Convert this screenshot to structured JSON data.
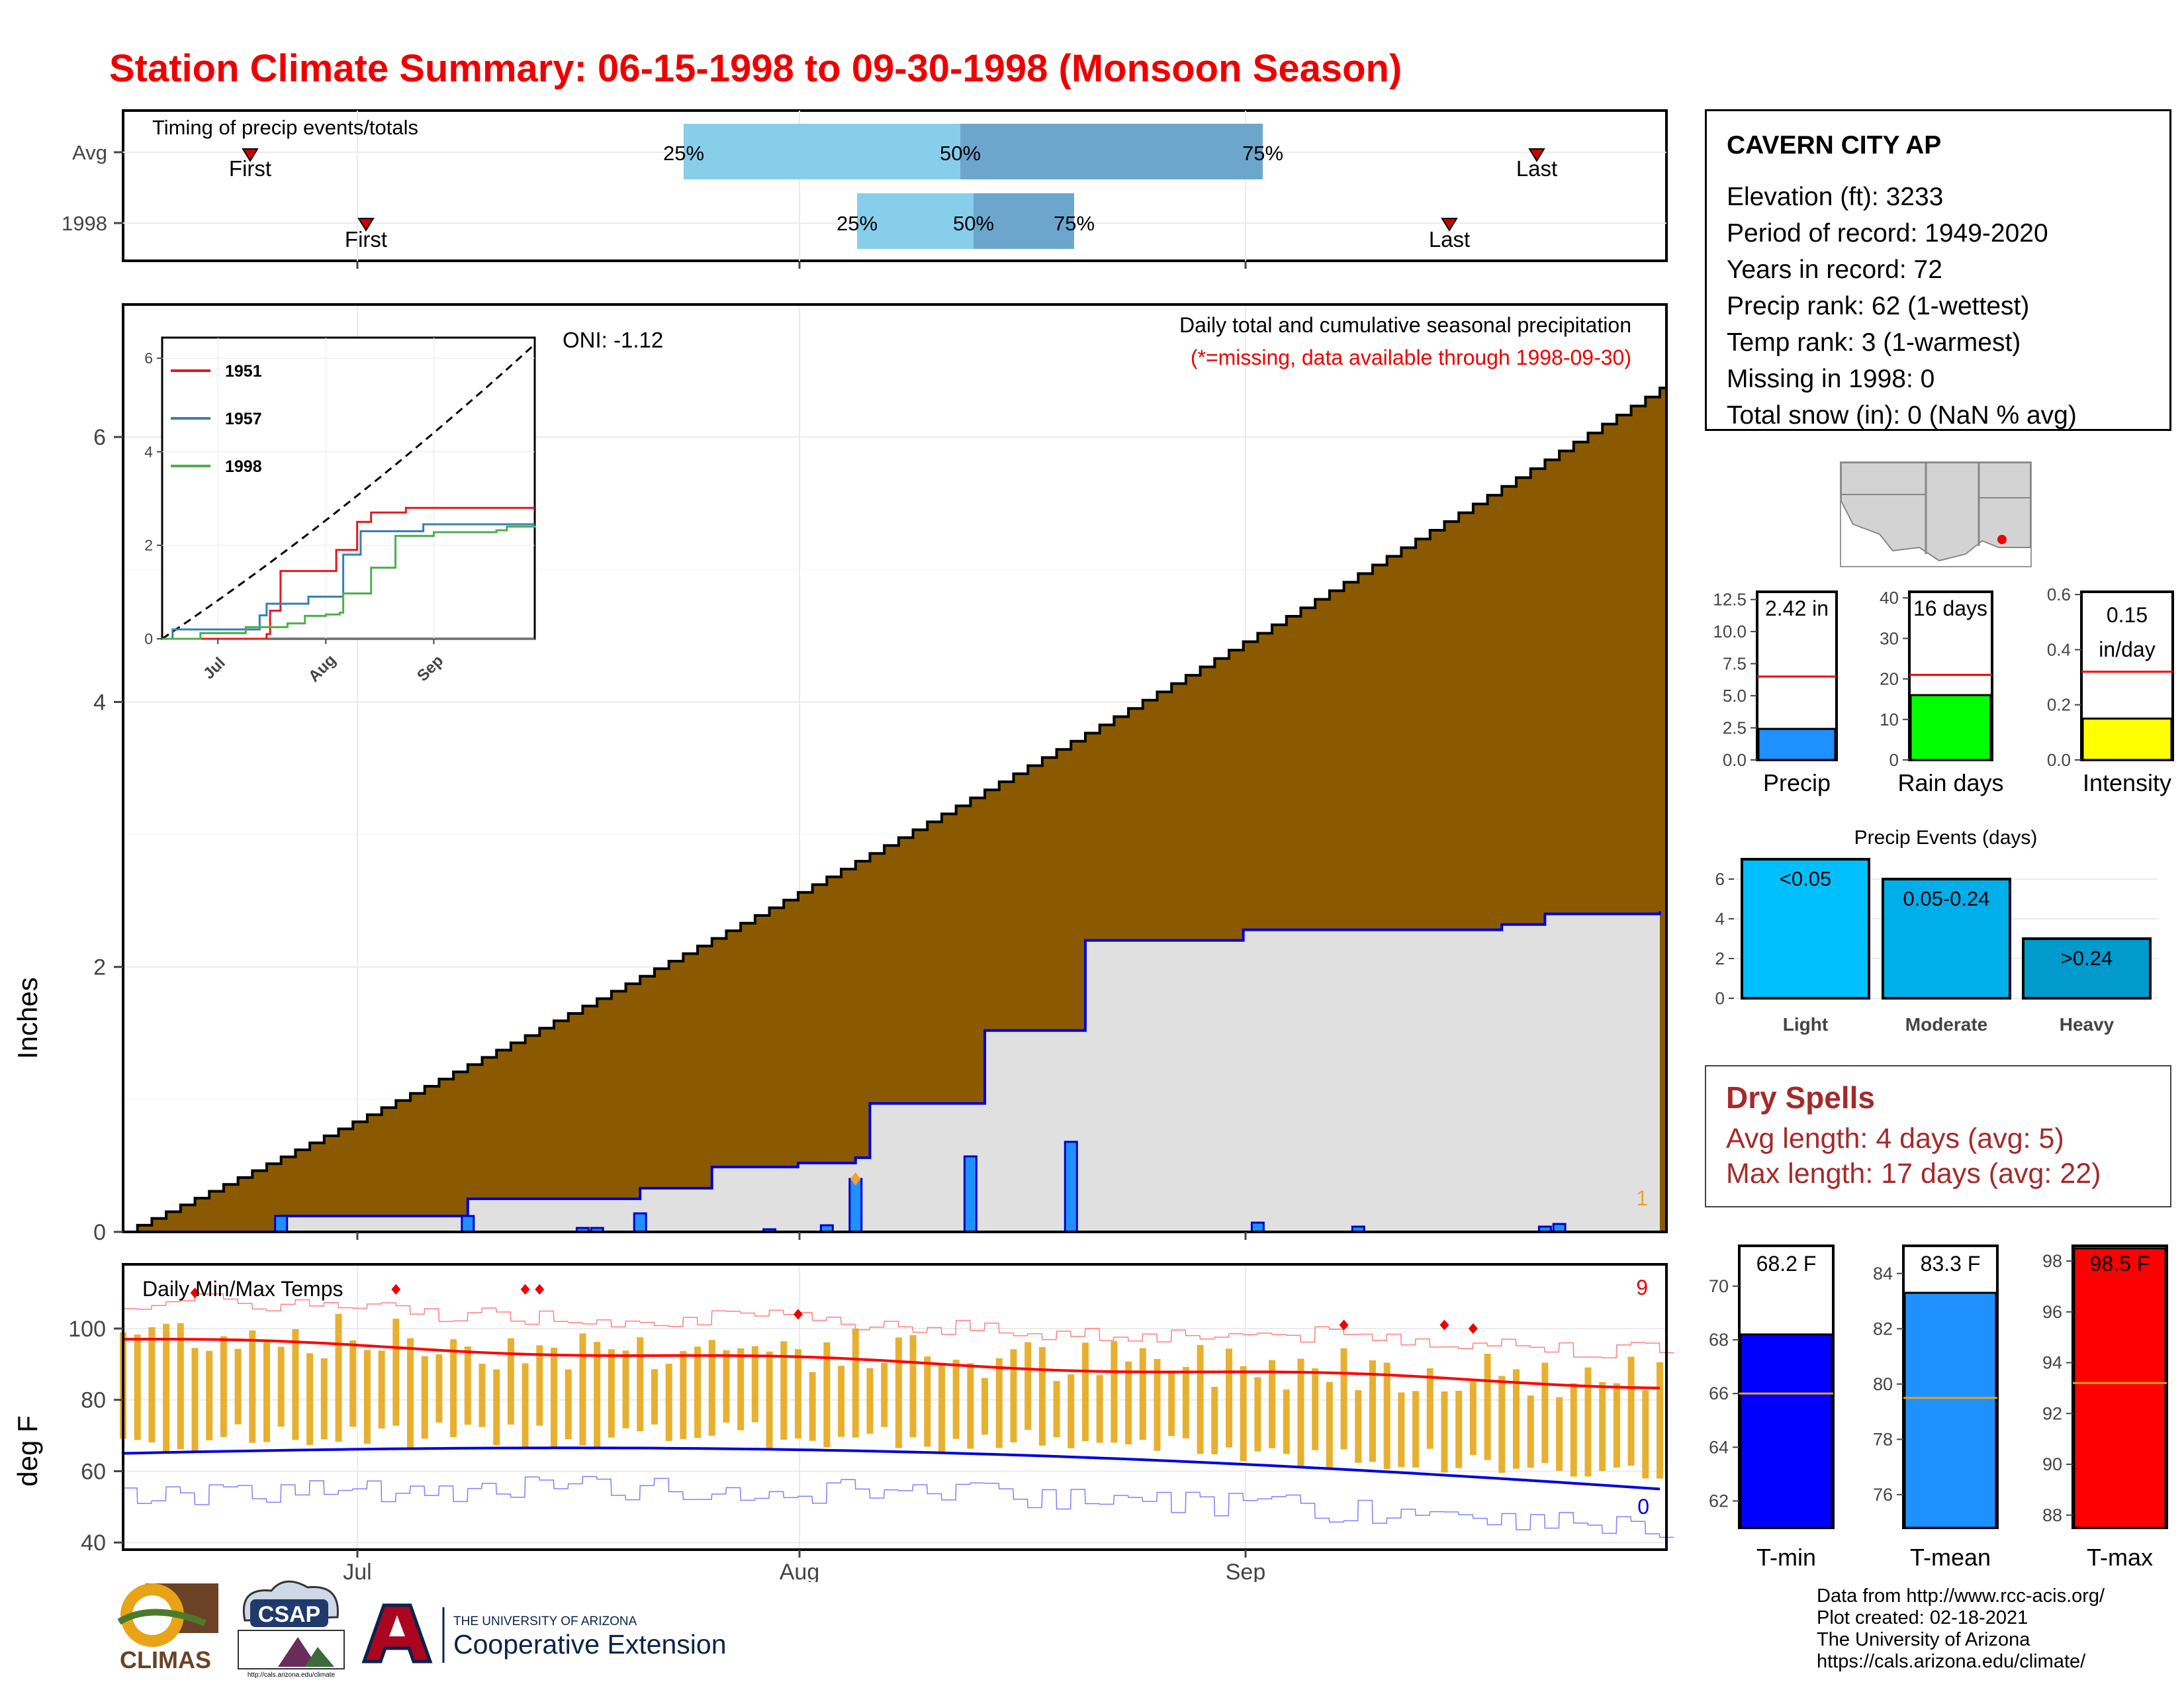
{
  "title": "Station Climate Summary: 06-15-1998 to 09-30-1998 (Monsoon Season)",
  "colors": {
    "title": "#ee0000",
    "cumulative_avg": "#8b5a00",
    "cumulative_year": "#e0e0e0",
    "year_line": "#0000dd",
    "daily_bar": "#1e90ff",
    "temp_bar": "#e8b030",
    "tmax_line": "#ff0000",
    "tmin_line": "#0000dd",
    "dry_spell_text": "#a52a2a"
  },
  "timing_panel": {
    "label": "Timing of precip events/totals",
    "rows": [
      {
        "name": "Avg",
        "first_label": "First",
        "last_label": "Last",
        "p25": "25%",
        "p50": "50%",
        "p75": "75%"
      },
      {
        "name": "1998",
        "first_label": "First",
        "last_label": "Last",
        "p25": "25%",
        "p50": "50%",
        "p75": "75%"
      }
    ]
  },
  "precip_panel": {
    "title": "Daily total and cumulative seasonal precipitation",
    "subtitle": "(*=missing, data available through 1998-09-30)",
    "oni_label": "ONI: -1.12",
    "ylabel": "Inches",
    "count_label": "1",
    "y_ticks": [
      "0",
      "2",
      "4",
      "6"
    ],
    "inset": {
      "legend": [
        "1951",
        "1957",
        "1998"
      ],
      "legend_colors": [
        "#e41a1c",
        "#377eb8",
        "#4daf4a"
      ],
      "y_ticks": [
        "0",
        "2",
        "4",
        "6"
      ],
      "x_ticks": [
        "Jul",
        "Aug",
        "Sep"
      ]
    }
  },
  "temp_panel": {
    "title": "Daily Min/Max Temps",
    "ylabel": "deg F",
    "max_count_label": "9",
    "min_count_label": "0",
    "y_ticks": [
      "40",
      "60",
      "80",
      "100"
    ],
    "x_ticks": [
      "Jul",
      "Aug",
      "Sep"
    ]
  },
  "station": {
    "name": "CAVERN CITY AP",
    "lines": [
      "Elevation (ft): 3233",
      "Period of record: 1949-2020",
      "Years in record: 72",
      "Precip rank: 62 (1-wettest)",
      "Temp rank: 3 (1-warmest)",
      "Missing in 1998: 0",
      "Total snow (in): 0 (NaN % avg)"
    ]
  },
  "gauges_top": [
    {
      "label": "Precip",
      "value_text": "2.42 in",
      "ticks": [
        "0.0",
        "2.5",
        "5.0",
        "7.5",
        "10.0",
        "12.5"
      ],
      "color": "#1e90ff"
    },
    {
      "label": "Rain days",
      "value_text": "16 days",
      "ticks": [
        "0",
        "10",
        "20",
        "30",
        "40"
      ],
      "color": "#00ff00"
    },
    {
      "label": "Intensity",
      "value_text_1": "0.15",
      "value_text_2": "in/day",
      "ticks": [
        "0.0",
        "0.2",
        "0.4",
        "0.6"
      ],
      "color": "#ffff00"
    }
  ],
  "precip_events": {
    "title": "Precip Events (days)",
    "categories": [
      "Light",
      "Moderate",
      "Heavy"
    ],
    "bar_labels": [
      "<0.05",
      "0.05-0.24",
      ">0.24"
    ],
    "y_ticks": [
      "0",
      "2",
      "4",
      "6"
    ]
  },
  "dry_spells": {
    "title": "Dry Spells",
    "avg_line": "Avg length: 4 days (avg: 5)",
    "max_line": "Max length: 17 days (avg: 22)"
  },
  "gauges_bottom": [
    {
      "label": "T-min",
      "value_text": "68.2 F",
      "ticks": [
        "62",
        "64",
        "66",
        "68",
        "70"
      ],
      "color": "#0000ff"
    },
    {
      "label": "T-mean",
      "value_text": "83.3 F",
      "ticks": [
        "76",
        "78",
        "80",
        "82",
        "84"
      ],
      "color": "#1e90ff"
    },
    {
      "label": "T-max",
      "value_text": "98.5 F",
      "ticks": [
        "88",
        "90",
        "92",
        "94",
        "96",
        "98"
      ],
      "color": "#ff0000"
    }
  ],
  "credits": [
    "Data from http://www.rcc-acis.org/",
    "Plot created: 02-18-2021",
    "The University of Arizona",
    "https://cals.arizona.edu/climate/"
  ],
  "logos": {
    "climas": "CLIMAS",
    "csap": "CSAP",
    "csap_url": "http://cals.arizona.edu/climate",
    "ua_top": "THE UNIVERSITY OF ARIZONA",
    "ua_bottom": "Cooperative Extension"
  },
  "chart_data": [
    {
      "type": "bar",
      "name": "timing",
      "categories": [
        "Avg",
        "1998"
      ],
      "first_day": [
        "06-19",
        "07-01"
      ],
      "last_day": [
        "09-22",
        "09-16"
      ],
      "p25": [
        "07-30",
        "08-05"
      ],
      "p50": [
        "08-10",
        "08-11"
      ],
      "p75": [
        "08-30",
        "08-15"
      ]
    },
    {
      "type": "area",
      "name": "cumulative_precip",
      "start_date": "1998-06-15",
      "end_date": "1998-09-30",
      "avg_cumulative_end": 6.37,
      "year_cumulative_steps": [
        [
          "06-26",
          0.12
        ],
        [
          "07-09",
          0.25
        ],
        [
          "07-21",
          0.33
        ],
        [
          "07-26",
          0.49
        ],
        [
          "08-01",
          0.52
        ],
        [
          "08-05",
          0.56
        ],
        [
          "08-06",
          0.97
        ],
        [
          "08-14",
          1.52
        ],
        [
          "08-21",
          2.2
        ],
        [
          "09-01",
          2.28
        ],
        [
          "09-19",
          2.32
        ],
        [
          "09-22",
          2.4
        ],
        [
          "09-30",
          2.42
        ]
      ],
      "daily_precip": [
        [
          "06-26",
          0.12
        ],
        [
          "07-09",
          0.12
        ],
        [
          "07-17",
          0.03
        ],
        [
          "07-18",
          0.03
        ],
        [
          "07-21",
          0.14
        ],
        [
          "07-30",
          0.02
        ],
        [
          "08-03",
          0.05
        ],
        [
          "08-05",
          0.4
        ],
        [
          "08-13",
          0.57
        ],
        [
          "08-20",
          0.68
        ],
        [
          "09-02",
          0.07
        ],
        [
          "09-09",
          0.04
        ],
        [
          "09-22",
          0.04
        ],
        [
          "09-23",
          0.06
        ]
      ],
      "ylim": [
        0,
        7
      ]
    },
    {
      "type": "line",
      "name": "inset_cumulative",
      "series": [
        {
          "name": "1951",
          "end_value": 2.8
        },
        {
          "name": "1957",
          "end_value": 2.5
        },
        {
          "name": "1998",
          "end_value": 2.42
        }
      ],
      "ylim": [
        0,
        6.3
      ]
    },
    {
      "type": "line",
      "name": "temperatures",
      "ylim": [
        38,
        118
      ],
      "avg_max_start": 97,
      "avg_max_end": 84,
      "avg_min_start": 65,
      "avg_min_end": 55
    },
    {
      "type": "bar",
      "name": "precip_events",
      "categories": [
        "Light",
        "Moderate",
        "Heavy"
      ],
      "values": [
        7,
        6,
        3
      ],
      "ylim": [
        0,
        7
      ]
    },
    {
      "type": "bar",
      "name": "gauges",
      "categories": [
        "Precip",
        "Rain days",
        "Intensity",
        "T-min",
        "T-mean",
        "T-max"
      ],
      "values": [
        2.42,
        16,
        0.15,
        68.2,
        83.3,
        98.5
      ],
      "averages": [
        6.5,
        21,
        0.32,
        66,
        79.5,
        93.2
      ]
    }
  ]
}
